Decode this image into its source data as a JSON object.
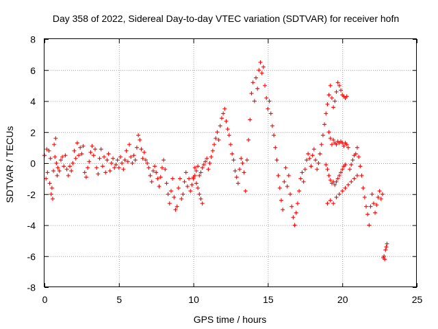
{
  "chart_data": {
    "type": "scatter",
    "title": "Day 358 of 2022, Sidereal Day-to-day VTEC variation (SDTVAR) for receiver hofn",
    "xlabel": "GPS time / hours",
    "ylabel": "SDTVAR / TECUs",
    "xlim": [
      0,
      25
    ],
    "ylim": [
      -8,
      8
    ],
    "xticks": [
      0,
      5,
      10,
      15,
      20,
      25
    ],
    "yticks": [
      -8,
      -6,
      -4,
      -2,
      0,
      2,
      4,
      6,
      8
    ],
    "grid": true,
    "marker": "+",
    "color": "#ff0000",
    "series": [
      {
        "name": "SDTVAR",
        "points": [
          [
            0.0,
            0.5
          ],
          [
            0.1,
            -1.0
          ],
          [
            0.15,
            0.9
          ],
          [
            0.2,
            -0.6
          ],
          [
            0.3,
            0.8
          ],
          [
            0.35,
            -1.3
          ],
          [
            0.4,
            0.3
          ],
          [
            0.45,
            -2.0
          ],
          [
            0.5,
            -1.6
          ],
          [
            0.55,
            -2.3
          ],
          [
            0.6,
            -0.5
          ],
          [
            0.65,
            1.2
          ],
          [
            0.7,
            0.4
          ],
          [
            0.75,
            1.6
          ],
          [
            0.8,
            0.0
          ],
          [
            0.85,
            -0.8
          ],
          [
            0.9,
            -0.3
          ],
          [
            1.0,
            -0.5
          ],
          [
            1.1,
            0.2
          ],
          [
            1.2,
            0.4
          ],
          [
            1.3,
            -0.2
          ],
          [
            1.4,
            0.5
          ],
          [
            1.5,
            -0.4
          ],
          [
            1.6,
            -0.8
          ],
          [
            1.7,
            -0.2
          ],
          [
            1.8,
            -0.5
          ],
          [
            1.9,
            0.0
          ],
          [
            2.0,
            0.8
          ],
          [
            2.1,
            0.3
          ],
          [
            2.2,
            1.3
          ],
          [
            2.3,
            0.5
          ],
          [
            2.4,
            1.0
          ],
          [
            2.5,
            0.6
          ],
          [
            2.6,
            1.1
          ],
          [
            2.7,
            -0.6
          ],
          [
            2.8,
            -0.9
          ],
          [
            2.9,
            -0.3
          ],
          [
            3.0,
            0.1
          ],
          [
            3.1,
            0.7
          ],
          [
            3.2,
            1.1
          ],
          [
            3.3,
            0.5
          ],
          [
            3.4,
            0.9
          ],
          [
            3.5,
            -0.3
          ],
          [
            3.6,
            -0.7
          ],
          [
            3.7,
            0.3
          ],
          [
            3.8,
            0.9
          ],
          [
            3.9,
            -0.2
          ],
          [
            4.0,
            0.4
          ],
          [
            4.1,
            -0.6
          ],
          [
            4.2,
            0.2
          ],
          [
            4.3,
            0.6
          ],
          [
            4.4,
            -0.5
          ],
          [
            4.5,
            0.0
          ],
          [
            4.6,
            0.3
          ],
          [
            4.7,
            -0.3
          ],
          [
            4.8,
            -0.1
          ],
          [
            4.9,
            0.2
          ],
          [
            5.0,
            -0.3
          ],
          [
            5.1,
            0.4
          ],
          [
            5.2,
            0.0
          ],
          [
            5.3,
            -0.4
          ],
          [
            5.4,
            0.2
          ],
          [
            5.5,
            0.8
          ],
          [
            5.6,
            0.1
          ],
          [
            5.7,
            1.2
          ],
          [
            5.8,
            0.4
          ],
          [
            5.9,
            0.0
          ],
          [
            6.0,
            0.5
          ],
          [
            6.1,
            0.2
          ],
          [
            6.2,
            1.0
          ],
          [
            6.3,
            1.8
          ],
          [
            6.4,
            1.5
          ],
          [
            6.5,
            0.9
          ],
          [
            6.6,
            0.3
          ],
          [
            6.7,
            0.7
          ],
          [
            6.8,
            0.2
          ],
          [
            6.9,
            0.0
          ],
          [
            7.0,
            -0.3
          ],
          [
            7.1,
            -0.8
          ],
          [
            7.2,
            -1.2
          ],
          [
            7.3,
            -0.5
          ],
          [
            7.4,
            -0.2
          ],
          [
            7.5,
            -0.6
          ],
          [
            7.6,
            -1.0
          ],
          [
            7.7,
            -1.5
          ],
          [
            7.8,
            -0.9
          ],
          [
            7.9,
            -0.3
          ],
          [
            8.0,
            0.2
          ],
          [
            8.1,
            -0.4
          ],
          [
            8.2,
            -1.3
          ],
          [
            8.3,
            -2.0
          ],
          [
            8.4,
            -2.6
          ],
          [
            8.5,
            -1.8
          ],
          [
            8.6,
            -1.0
          ],
          [
            8.7,
            -2.2
          ],
          [
            8.8,
            -3.0
          ],
          [
            8.9,
            -2.8
          ],
          [
            9.0,
            -1.6
          ],
          [
            9.1,
            -1.0
          ],
          [
            9.2,
            -2.3
          ],
          [
            9.3,
            -2.0
          ],
          [
            9.4,
            -1.2
          ],
          [
            9.5,
            -0.6
          ],
          [
            9.6,
            -1.5
          ],
          [
            9.7,
            -1.0
          ],
          [
            9.8,
            -1.8
          ],
          [
            9.9,
            -1.4
          ],
          [
            10.0,
            -1.0
          ],
          [
            10.1,
            -0.8
          ],
          [
            10.2,
            -1.3
          ],
          [
            10.3,
            -1.6
          ],
          [
            10.4,
            -2.0
          ],
          [
            10.5,
            -2.3
          ],
          [
            10.6,
            -2.6
          ],
          [
            10.0,
            -0.9
          ],
          [
            10.1,
            -0.3
          ],
          [
            10.2,
            -0.5
          ],
          [
            10.3,
            -0.2
          ],
          [
            10.4,
            -0.8
          ],
          [
            10.5,
            -0.6
          ],
          [
            10.6,
            -0.3
          ],
          [
            10.7,
            -0.1
          ],
          [
            10.8,
            0.1
          ],
          [
            10.9,
            0.3
          ],
          [
            11.0,
            -0.4
          ],
          [
            11.1,
            0.0
          ],
          [
            11.2,
            0.4
          ],
          [
            11.3,
            0.8
          ],
          [
            11.4,
            1.2
          ],
          [
            11.5,
            1.6
          ],
          [
            11.6,
            2.0
          ],
          [
            11.7,
            1.5
          ],
          [
            11.8,
            2.4
          ],
          [
            11.9,
            2.9
          ],
          [
            12.0,
            3.2
          ],
          [
            12.1,
            3.5
          ],
          [
            12.2,
            2.7
          ],
          [
            12.3,
            2.2
          ],
          [
            12.4,
            1.8
          ],
          [
            12.5,
            1.2
          ],
          [
            12.6,
            0.6
          ],
          [
            12.7,
            0.2
          ],
          [
            12.8,
            -0.5
          ],
          [
            12.9,
            -0.9
          ],
          [
            13.0,
            -1.3
          ],
          [
            13.1,
            -0.4
          ],
          [
            13.2,
            0.3
          ],
          [
            13.3,
            0.0
          ],
          [
            13.4,
            -0.6
          ],
          [
            13.5,
            -1.8
          ],
          [
            13.6,
            0.2
          ],
          [
            13.7,
            1.5
          ],
          [
            13.8,
            2.8
          ],
          [
            13.9,
            4.5
          ],
          [
            14.0,
            5.2
          ],
          [
            14.1,
            4.0
          ],
          [
            14.2,
            5.5
          ],
          [
            14.3,
            4.8
          ],
          [
            14.4,
            6.0
          ],
          [
            14.5,
            6.5
          ],
          [
            14.6,
            5.8
          ],
          [
            14.7,
            6.2
          ],
          [
            14.8,
            5.0
          ],
          [
            14.9,
            4.2
          ],
          [
            15.0,
            3.5
          ],
          [
            15.1,
            4.0
          ],
          [
            15.2,
            3.2
          ],
          [
            15.3,
            2.4
          ],
          [
            15.4,
            1.8
          ],
          [
            15.5,
            1.0
          ],
          [
            15.6,
            0.2
          ],
          [
            15.7,
            -0.8
          ],
          [
            15.8,
            -1.6
          ],
          [
            15.9,
            -2.4
          ],
          [
            16.0,
            -3.0
          ],
          [
            16.1,
            -1.2
          ],
          [
            16.2,
            -0.3
          ],
          [
            16.3,
            -1.5
          ],
          [
            16.4,
            -0.8
          ],
          [
            16.5,
            -2.0
          ],
          [
            16.6,
            -2.8
          ],
          [
            16.7,
            -3.5
          ],
          [
            16.8,
            -4.0
          ],
          [
            16.9,
            -3.2
          ],
          [
            17.0,
            -2.6
          ],
          [
            17.1,
            -1.8
          ],
          [
            17.2,
            -1.0
          ],
          [
            17.3,
            -0.6
          ],
          [
            17.4,
            -1.2
          ],
          [
            17.5,
            -0.4
          ],
          [
            17.6,
            0.2
          ],
          [
            17.7,
            0.6
          ],
          [
            17.8,
            0.3
          ],
          [
            17.9,
            -0.2
          ],
          [
            18.0,
            0.5
          ],
          [
            18.1,
            0.9
          ],
          [
            18.2,
            0.2
          ],
          [
            18.3,
            -0.4
          ],
          [
            18.4,
            0.0
          ],
          [
            18.5,
            0.6
          ],
          [
            18.6,
            1.2
          ],
          [
            18.7,
            1.8
          ],
          [
            18.8,
            2.5
          ],
          [
            18.9,
            3.2
          ],
          [
            19.0,
            3.8
          ],
          [
            19.1,
            4.4
          ],
          [
            19.2,
            5.0
          ],
          [
            19.3,
            4.2
          ],
          [
            19.4,
            3.6
          ],
          [
            19.5,
            4.0
          ],
          [
            19.6,
            4.6
          ],
          [
            19.7,
            5.2
          ],
          [
            19.8,
            5.0
          ],
          [
            19.9,
            4.7
          ],
          [
            20.0,
            4.4
          ],
          [
            20.1,
            4.3
          ],
          [
            20.2,
            4.2
          ],
          [
            20.3,
            4.3
          ],
          [
            19.1,
            2.0
          ],
          [
            19.2,
            1.6
          ],
          [
            19.3,
            1.2
          ],
          [
            19.4,
            1.5
          ],
          [
            19.5,
            1.3
          ],
          [
            19.6,
            1.2
          ],
          [
            19.7,
            1.4
          ],
          [
            19.8,
            1.3
          ],
          [
            19.9,
            1.4
          ],
          [
            20.0,
            1.3
          ],
          [
            20.1,
            1.1
          ],
          [
            20.2,
            1.3
          ],
          [
            20.3,
            1.2
          ],
          [
            20.4,
            1.0
          ],
          [
            18.9,
            -0.1
          ],
          [
            19.0,
            -0.4
          ],
          [
            19.1,
            -0.8
          ],
          [
            19.2,
            -1.1
          ],
          [
            19.3,
            -1.3
          ],
          [
            19.4,
            -1.2
          ],
          [
            19.5,
            -1.4
          ],
          [
            19.6,
            -1.2
          ],
          [
            19.7,
            -1.0
          ],
          [
            19.8,
            -0.8
          ],
          [
            19.9,
            -0.6
          ],
          [
            20.0,
            -0.4
          ],
          [
            20.1,
            -0.2
          ],
          [
            20.2,
            -0.1
          ],
          [
            20.5,
            -0.4
          ],
          [
            20.6,
            -0.1
          ],
          [
            20.7,
            0.2
          ],
          [
            20.8,
            0.5
          ],
          [
            20.9,
            0.6
          ],
          [
            21.0,
            1.0
          ],
          [
            21.1,
            0.4
          ],
          [
            21.2,
            -0.2
          ],
          [
            21.3,
            -0.8
          ],
          [
            21.4,
            -1.6
          ],
          [
            21.5,
            -2.2
          ],
          [
            21.6,
            -2.8
          ],
          [
            21.7,
            -3.3
          ],
          [
            21.8,
            -4.0
          ],
          [
            21.9,
            -2.8
          ],
          [
            22.0,
            -2.0
          ],
          [
            22.1,
            -2.6
          ],
          [
            22.2,
            -3.2
          ],
          [
            22.3,
            -2.7
          ],
          [
            22.4,
            -2.2
          ],
          [
            22.5,
            -1.8
          ],
          [
            22.6,
            -2.3
          ],
          [
            22.7,
            -2.0
          ],
          [
            19.0,
            -2.6
          ],
          [
            19.2,
            -2.4
          ],
          [
            19.4,
            -2.6
          ],
          [
            19.6,
            -2.2
          ],
          [
            19.8,
            -2.0
          ],
          [
            20.0,
            -1.8
          ],
          [
            20.2,
            -1.6
          ],
          [
            20.4,
            -1.4
          ],
          [
            20.6,
            -1.2
          ],
          [
            20.8,
            -1.0
          ],
          [
            21.0,
            -0.8
          ],
          [
            22.8,
            -6.0
          ],
          [
            22.85,
            -6.2
          ],
          [
            22.9,
            -5.6
          ],
          [
            22.95,
            -5.4
          ],
          [
            23.0,
            -5.2
          ],
          [
            22.75,
            -6.1
          ]
        ]
      }
    ]
  }
}
